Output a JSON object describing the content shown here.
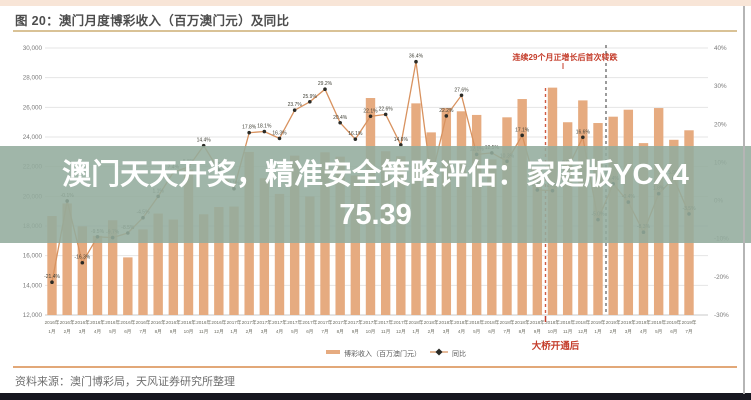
{
  "page": {
    "title": "图 20：澳门月度博彩收入（百万澳门元）及同比",
    "source_note": "资料来源：澳门博彩局，天风证券研究所整理"
  },
  "overlay": {
    "text": "澳门天天开奖，精准安全策略评估：家庭版YCX475.39",
    "bg_color": "#93ac9d"
  },
  "chart_data": {
    "type": "combo_bar_line",
    "title": "澳门月度博彩收入（百万澳门元）及同比",
    "categories": [
      "2016年1月",
      "2016年2月",
      "2016年3月",
      "2016年4月",
      "2016年5月",
      "2016年6月",
      "2016年7月",
      "2016年8月",
      "2016年9月",
      "2016年10月",
      "2016年11月",
      "2016年12月",
      "2017年1月",
      "2017年2月",
      "2017年3月",
      "2017年4月",
      "2017年5月",
      "2017年6月",
      "2017年7月",
      "2017年8月",
      "2017年9月",
      "2017年10月",
      "2017年11月",
      "2017年12月",
      "2018年1月",
      "2018年2月",
      "2018年3月",
      "2018年4月",
      "2018年5月",
      "2018年6月",
      "2018年7月",
      "2018年8月",
      "2018年9月",
      "2018年10月",
      "2018年11月",
      "2018年12月",
      "2019年1月",
      "2019年2月",
      "2019年3月",
      "2019年4月",
      "2019年5月",
      "2019年6月",
      "2019年7月"
    ],
    "series": [
      {
        "name": "博彩收入（百万澳门元）",
        "type": "bar",
        "axis": "left",
        "color": "#e6ab80",
        "values": [
          18674,
          19520,
          17980,
          17340,
          18389,
          15885,
          17770,
          18837,
          18435,
          21807,
          18789,
          19277,
          19312,
          22992,
          21215,
          20164,
          22743,
          19992,
          22968,
          22676,
          21408,
          26628,
          23039,
          22703,
          26268,
          24312,
          25952,
          25733,
          25488,
          22490,
          25327,
          26559,
          21952,
          27328,
          24995,
          26468,
          24942,
          25370,
          25840,
          23588,
          25952,
          23812,
          24453
        ]
      },
      {
        "name": "同比",
        "type": "line",
        "axis": "right",
        "color": "#d8925f",
        "marker_color": "#2b2b26",
        "values": [
          -21.4,
          -0.1,
          -16.3,
          -9.5,
          -9.7,
          -8.5,
          -4.5,
          1.1,
          7.4,
          8.8,
          14.4,
          8.0,
          3.1,
          17.8,
          18.1,
          16.3,
          23.7,
          25.9,
          29.2,
          20.4,
          16.1,
          22.1,
          22.6,
          14.6,
          36.4,
          5.7,
          22.2,
          27.6,
          12.1,
          12.5,
          10.3,
          17.1,
          2.8,
          2.6,
          8.5,
          16.6,
          -5.0,
          4.4,
          -0.4,
          -8.3,
          1.8,
          5.9,
          -3.5
        ]
      }
    ],
    "left_axis": {
      "min": 12000,
      "max": 30000,
      "step": 2000
    },
    "right_axis": {
      "min": -30,
      "max": 40,
      "step": 10,
      "unit": "%"
    },
    "grid": "horizontal",
    "legend_position": "bottom",
    "annotations": {
      "streak_note": {
        "text": "连续29个月正增长后首次转跌",
        "color": "#c43c2a"
      },
      "bridge_note": {
        "text": "大桥开通后",
        "color": "#c43c2a"
      },
      "bridge_line_month": "2018年10月",
      "bridge_line_index": 33,
      "decline_line_month": "2019年1月",
      "decline_line_index": 36
    }
  }
}
